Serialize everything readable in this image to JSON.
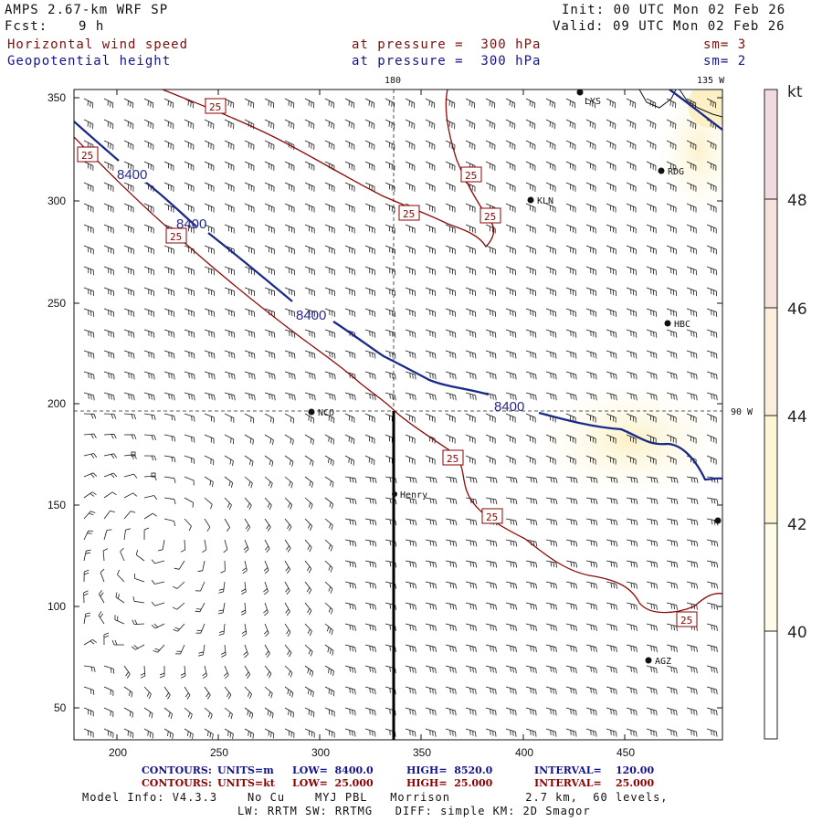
{
  "header": {
    "model": "AMPS 2.67-km WRF SP",
    "fcst_label": "Fcst:",
    "fcst_value": "9 h",
    "init": "Init: 00 UTC Mon 02 Feb 26",
    "valid": "Valid: 09 UTC Mon 02 Feb 26",
    "field1_name": "Horizontal wind speed",
    "field1_level": "at pressure =  300 hPa",
    "field1_sm": "sm= 3",
    "field2_name": "Geopotential height",
    "field2_level": "at pressure =  300 hPa",
    "field2_sm": "sm= 2"
  },
  "map": {
    "x_ticks": [
      "200",
      "250",
      "300",
      "350",
      "400",
      "450"
    ],
    "y_ticks": [
      "350",
      "300",
      "250",
      "200",
      "150",
      "100",
      "50"
    ],
    "meridian_labels": [
      "180",
      "135 W"
    ],
    "parallel_label": "90 W",
    "stations": [
      "LYS",
      "RDG",
      "KLN",
      "HBC",
      "NCO",
      "Henry",
      "AGZ"
    ],
    "height_contour_label": "8400",
    "speed_contour_label": "25"
  },
  "colorbar": {
    "unit": "kt",
    "labels": [
      "48",
      "46",
      "44",
      "42",
      "40"
    ],
    "colors": [
      "#ffffff",
      "#fefce8",
      "#fcf5d6",
      "#fbefdc",
      "#f5e2da",
      "#f1dbe0"
    ]
  },
  "footer": {
    "row1": {
      "label": "CONTOURS:",
      "units": "UNITS=m",
      "low": "LOW=  8400.0",
      "high": "HIGH=  8520.0",
      "interval": "INTERVAL=    120.00"
    },
    "row2": {
      "label": "CONTOURS:",
      "units": "UNITS=kt",
      "low": "LOW=  25.000",
      "high": "HIGH=  25.000",
      "interval": "INTERVAL=    25.000"
    },
    "model_info": "Model Info: V4.3.3    No Cu    MYJ PBL   Morrison          2.7 km,  60 levels,",
    "model_info2": "LW: RRTM SW: RRTMG   DIFF: simple KM: 2D Smagor"
  }
}
